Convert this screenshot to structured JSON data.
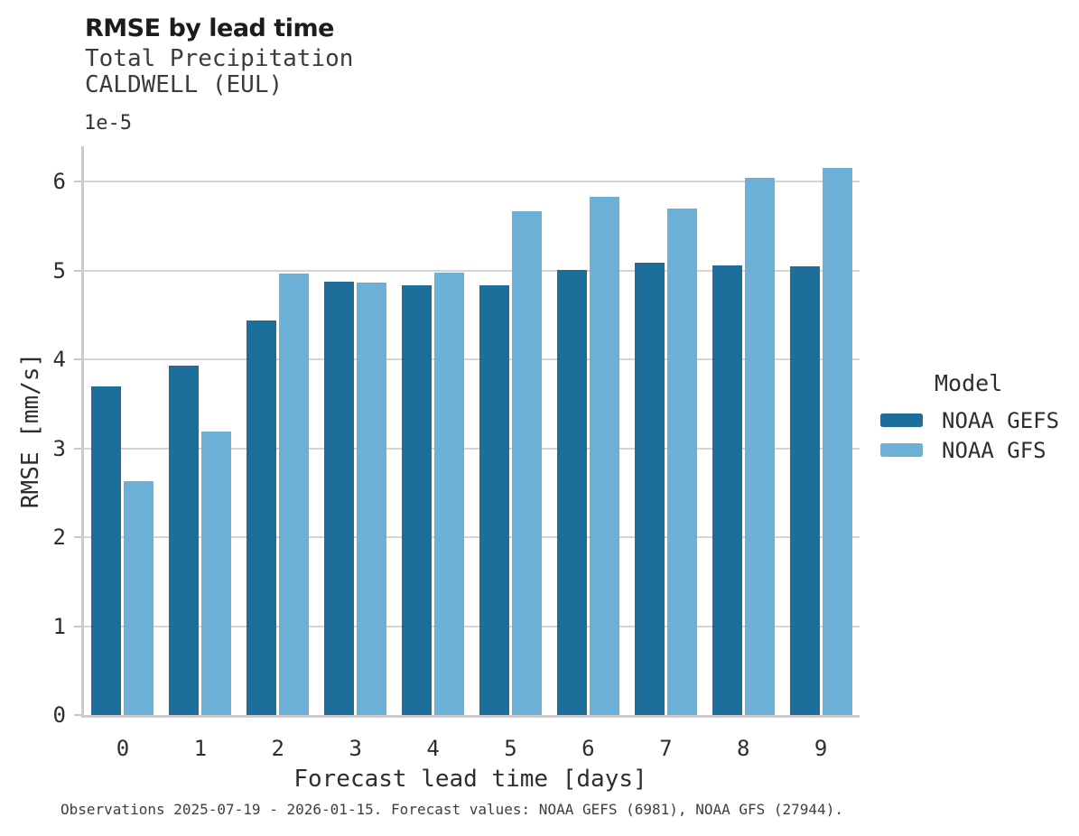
{
  "chart_data": {
    "type": "bar",
    "title": "RMSE by lead time",
    "subtitle1": "Total Precipitation",
    "subtitle2": "CALDWELL (EUL)",
    "offset_label": "1e-5",
    "categories": [
      0,
      1,
      2,
      3,
      4,
      5,
      6,
      7,
      8,
      9
    ],
    "series": [
      {
        "name": "NOAA GEFS",
        "color": "#1e6e9c",
        "values": [
          3.7,
          3.93,
          4.44,
          4.88,
          4.84,
          4.84,
          5.01,
          5.09,
          5.06,
          5.05
        ]
      },
      {
        "name": "NOAA GFS",
        "color": "#6cb0d8",
        "values": [
          2.63,
          3.19,
          4.97,
          4.87,
          4.98,
          5.67,
          5.83,
          5.7,
          6.04,
          6.16
        ]
      }
    ],
    "value_scale": "values are in units of 1e-5",
    "xlabel": "Forecast lead time [days]",
    "ylabel": "RMSE [mm/s]",
    "ylim": [
      0,
      6.4
    ],
    "yticks": [
      0,
      1,
      2,
      3,
      4,
      5,
      6
    ],
    "grid": "horizontal",
    "legend": {
      "title": "Model",
      "position": "right-center"
    }
  },
  "colors": {
    "gefs_bar": "#1e6e9c",
    "gfs_bar": "#6cb0d8",
    "gridline": "#d5d5d5",
    "axis_spine": "#cbcbcb",
    "title_text": "#1c1c1c",
    "body_text": "#2e2e2e"
  },
  "footer": {
    "note": "Observations 2025-07-19 - 2026-01-15. Forecast values: NOAA GEFS (6981), NOAA GFS (27944)."
  }
}
